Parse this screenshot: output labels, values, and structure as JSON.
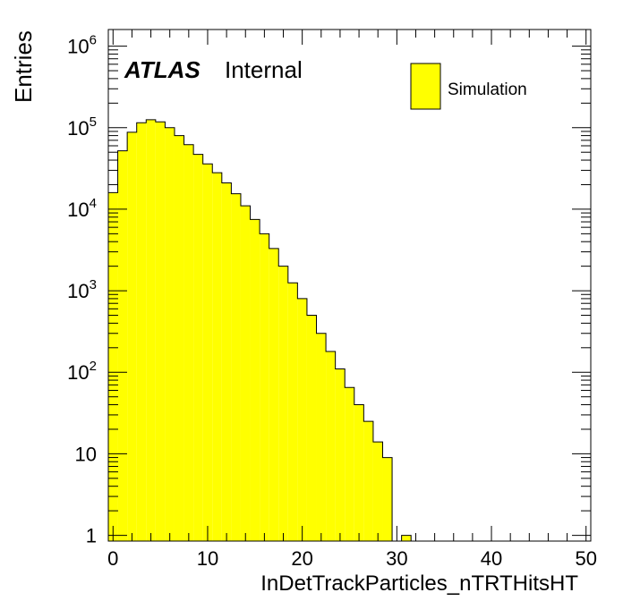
{
  "chart_data": {
    "type": "bar",
    "histogram": true,
    "bin_width": 1,
    "log_y": true,
    "xlabel": "InDetTrackParticles_nTRTHitsHT",
    "ylabel": "Entries",
    "xlim": [
      -0.5,
      50.5
    ],
    "ylim": [
      0.85,
      1600000
    ],
    "x_ticks": [
      0,
      10,
      20,
      30,
      40,
      50
    ],
    "y_ticks": [
      {
        "value": 1,
        "base": "1",
        "exp": ""
      },
      {
        "value": 10,
        "base": "10",
        "exp": ""
      },
      {
        "value": 100,
        "base": "10",
        "exp": "2"
      },
      {
        "value": 1000,
        "base": "10",
        "exp": "3"
      },
      {
        "value": 10000,
        "base": "10",
        "exp": "4"
      },
      {
        "value": 100000,
        "base": "10",
        "exp": "5"
      },
      {
        "value": 1000000,
        "base": "10",
        "exp": "6"
      }
    ],
    "fill_color": "#ffff00",
    "line_color": "#000000",
    "legend": {
      "position": "top-right",
      "entry": "Simulation"
    },
    "labels": {
      "atlas": "ATLAS",
      "status": "Internal"
    },
    "bins": [
      {
        "x": 0,
        "value": 16000
      },
      {
        "x": 1,
        "value": 52000
      },
      {
        "x": 2,
        "value": 88000
      },
      {
        "x": 3,
        "value": 115000
      },
      {
        "x": 4,
        "value": 125000
      },
      {
        "x": 5,
        "value": 118000
      },
      {
        "x": 6,
        "value": 100000
      },
      {
        "x": 7,
        "value": 80000
      },
      {
        "x": 8,
        "value": 62000
      },
      {
        "x": 9,
        "value": 47000
      },
      {
        "x": 10,
        "value": 36000
      },
      {
        "x": 11,
        "value": 28000
      },
      {
        "x": 12,
        "value": 21000
      },
      {
        "x": 13,
        "value": 15500
      },
      {
        "x": 14,
        "value": 11000
      },
      {
        "x": 15,
        "value": 7500
      },
      {
        "x": 16,
        "value": 5000
      },
      {
        "x": 17,
        "value": 3300
      },
      {
        "x": 18,
        "value": 2000
      },
      {
        "x": 19,
        "value": 1250
      },
      {
        "x": 20,
        "value": 800
      },
      {
        "x": 21,
        "value": 500
      },
      {
        "x": 22,
        "value": 300
      },
      {
        "x": 23,
        "value": 180
      },
      {
        "x": 24,
        "value": 110
      },
      {
        "x": 25,
        "value": 65
      },
      {
        "x": 26,
        "value": 40
      },
      {
        "x": 27,
        "value": 25
      },
      {
        "x": 28,
        "value": 14
      },
      {
        "x": 29,
        "value": 9
      },
      {
        "x": 30,
        "value": 0
      },
      {
        "x": 31,
        "value": 1
      }
    ]
  }
}
